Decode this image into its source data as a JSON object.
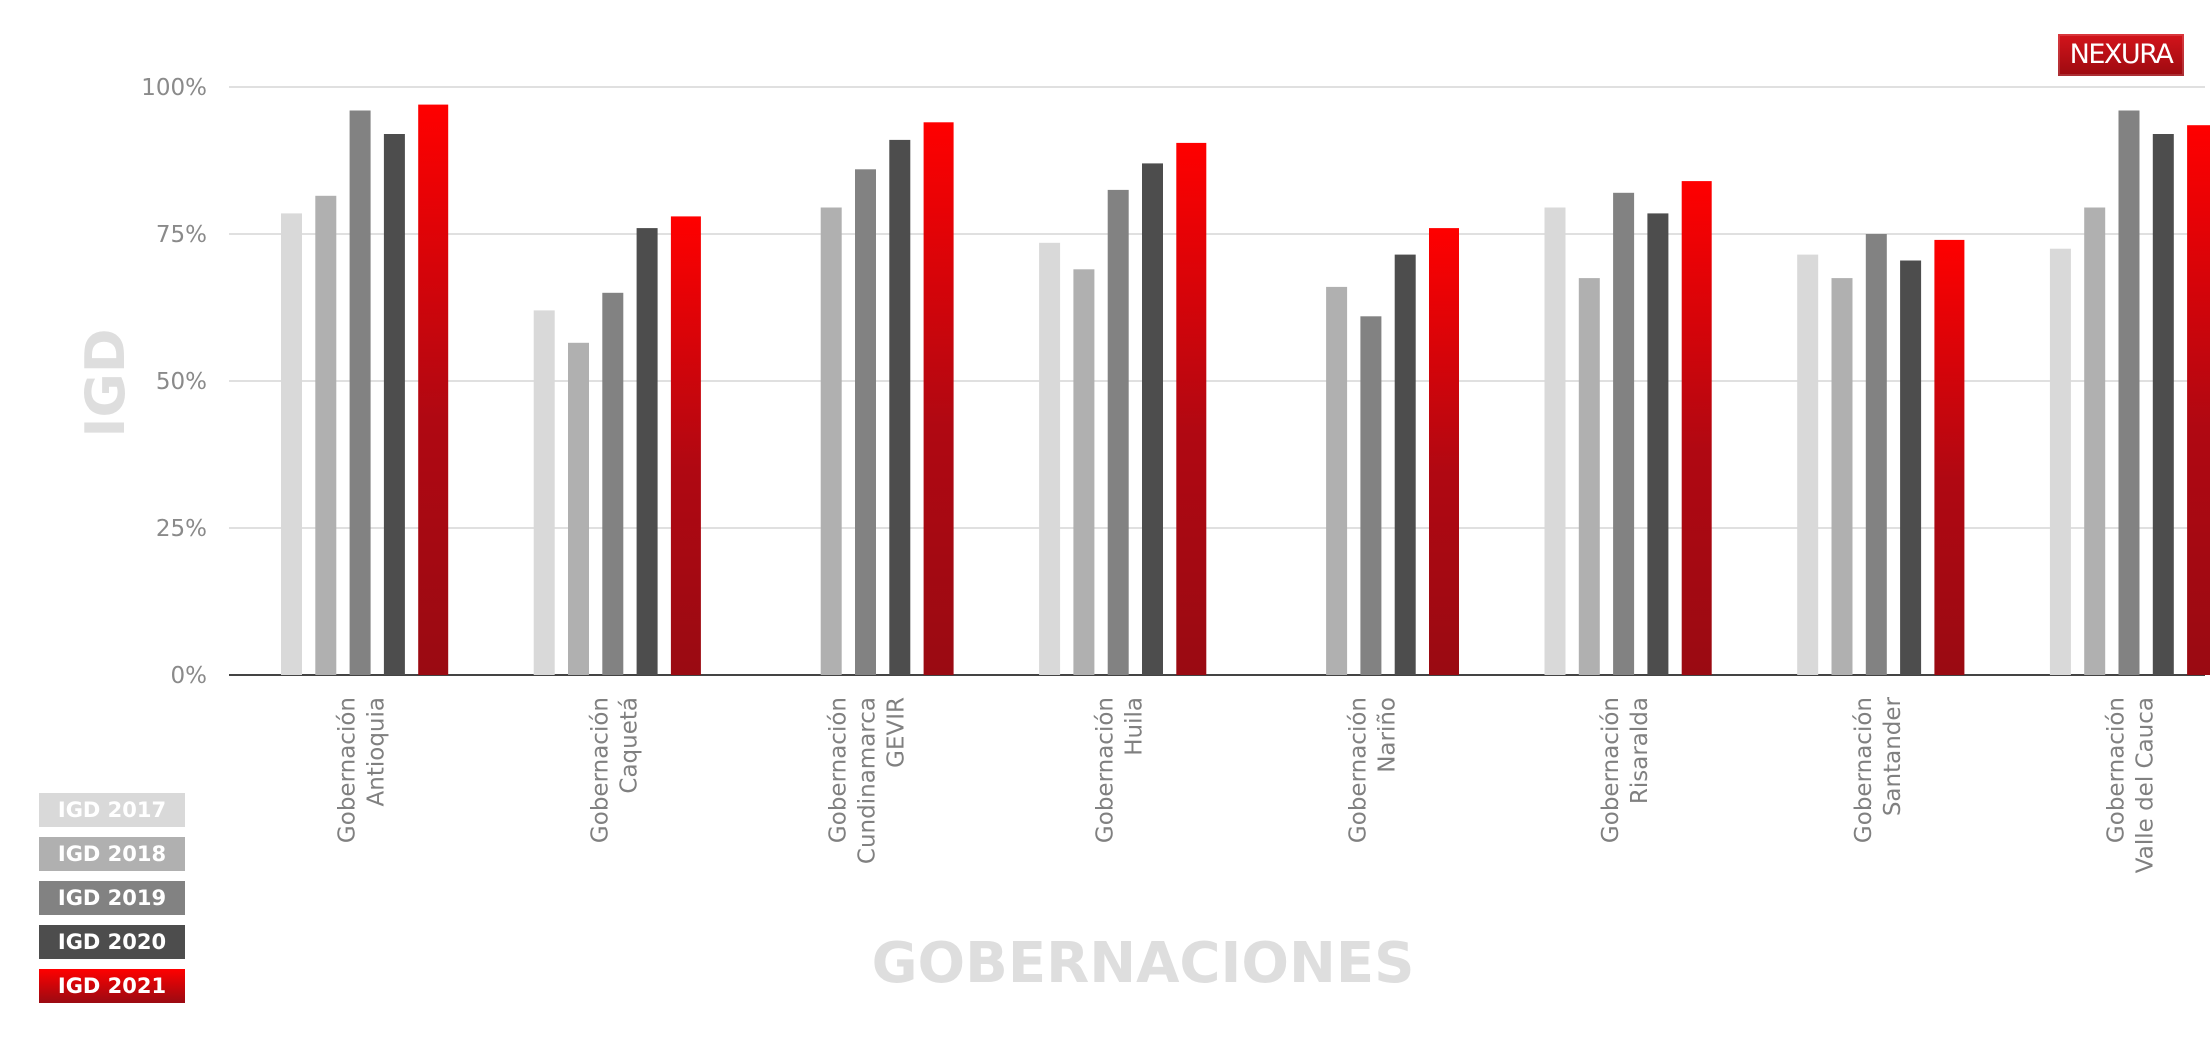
{
  "logo": {
    "text": "NEXURA"
  },
  "chart_data": {
    "type": "bar",
    "ylabel": "IGD",
    "xlabel": "GOBERNACIONES",
    "ylim": [
      0,
      100
    ],
    "y_ticks": [
      "0%",
      "25%",
      "50%",
      "75%",
      "100%"
    ],
    "grid": true,
    "legend_position": "bottom-left",
    "categories": [
      [
        "Gobernación",
        "Antioquia"
      ],
      [
        "Gobernación",
        "Caquetá"
      ],
      [
        "Gobernación",
        "Cundinamarca",
        "GEVIR"
      ],
      [
        "Gobernación",
        "Huila"
      ],
      [
        "Gobernación",
        "Nariño"
      ],
      [
        "Gobernación",
        "Risaralda"
      ],
      [
        "Gobernación",
        "Santander"
      ],
      [
        "Gobernación",
        "Valle del Cauca"
      ]
    ],
    "series": [
      {
        "name": "IGD 2017",
        "color": "#d9d9d9",
        "values": [
          78.5,
          62,
          null,
          73.5,
          null,
          79.5,
          71.5,
          72.5
        ]
      },
      {
        "name": "IGD 2018",
        "color": "#b0b0b0",
        "values": [
          81.5,
          56.5,
          79.5,
          69,
          66,
          67.5,
          67.5,
          79.5
        ]
      },
      {
        "name": "IGD 2019",
        "color": "#828282",
        "values": [
          96,
          65,
          86,
          82.5,
          61,
          82,
          75,
          96
        ]
      },
      {
        "name": "IGD 2020",
        "color": "#4d4d4d",
        "values": [
          92,
          76,
          91,
          87,
          71.5,
          78.5,
          70.5,
          92
        ]
      },
      {
        "name": "IGD 2021",
        "color": "gradient-red",
        "values": [
          97,
          78,
          94,
          90.5,
          76,
          84,
          74,
          93.5
        ]
      }
    ],
    "gradient_colors": [
      "#ff0000",
      "#9a0a12"
    ]
  }
}
